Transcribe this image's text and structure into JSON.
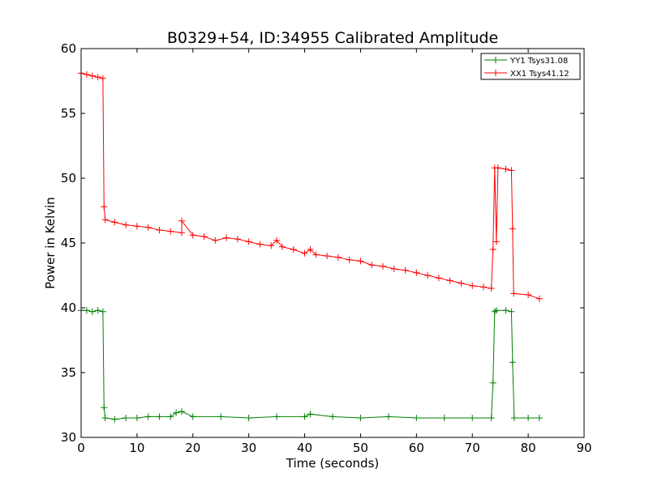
{
  "chart_data": {
    "type": "line",
    "title": "B0329+54, ID:34955 Calibrated Amplitude",
    "xlabel": "Time (seconds)",
    "ylabel": "Power in Kelvin",
    "xlim": [
      0,
      90
    ],
    "ylim": [
      30,
      60
    ],
    "xticks": [
      "0",
      "10",
      "20",
      "30",
      "40",
      "50",
      "60",
      "70",
      "80",
      "90"
    ],
    "yticks": [
      "30",
      "35",
      "40",
      "45",
      "50",
      "55",
      "60"
    ],
    "grid": false,
    "legend_position": "top-right",
    "series": [
      {
        "name": "YY1 Tsys31.08",
        "color": "#008000",
        "marker": "plus",
        "x": [
          0,
          1,
          2,
          3,
          3.9,
          4.1,
          4.3,
          6,
          8,
          10,
          12,
          14,
          16,
          17,
          18,
          20,
          25,
          30,
          35,
          40,
          41,
          45,
          50,
          55,
          60,
          65,
          70,
          73.4,
          73.7,
          74,
          74.3,
          76,
          77,
          77.2,
          77.5,
          80,
          82
        ],
        "y": [
          39.8,
          39.8,
          39.7,
          39.8,
          39.7,
          32.3,
          31.5,
          31.4,
          31.5,
          31.5,
          31.6,
          31.6,
          31.6,
          31.9,
          32.0,
          31.6,
          31.6,
          31.5,
          31.6,
          31.6,
          31.8,
          31.6,
          31.5,
          31.6,
          31.5,
          31.5,
          31.5,
          31.5,
          34.2,
          39.7,
          39.8,
          39.8,
          39.7,
          35.8,
          31.5,
          31.5,
          31.5
        ]
      },
      {
        "name": "XX1 Tsys41.12",
        "color": "#ff0000",
        "marker": "plus",
        "x": [
          0,
          1,
          2,
          3,
          3.9,
          4.1,
          4.3,
          6,
          8,
          10,
          12,
          14,
          16,
          18,
          18,
          20,
          22,
          24,
          26,
          28,
          30,
          32,
          34,
          35,
          36,
          38,
          40,
          41,
          42,
          44,
          46,
          48,
          50,
          52,
          54,
          56,
          58,
          60,
          62,
          64,
          66,
          68,
          70,
          72,
          73.4,
          73.7,
          74,
          74.3,
          74.6,
          76,
          77,
          77.2,
          77.4,
          80,
          82
        ],
        "y": [
          58.1,
          58.0,
          57.9,
          57.8,
          57.7,
          47.8,
          46.8,
          46.6,
          46.4,
          46.3,
          46.2,
          46.0,
          45.9,
          45.8,
          46.7,
          45.6,
          45.5,
          45.2,
          45.4,
          45.3,
          45.1,
          44.9,
          44.8,
          45.2,
          44.7,
          44.5,
          44.2,
          44.5,
          44.1,
          44.0,
          43.9,
          43.7,
          43.6,
          43.3,
          43.2,
          43.0,
          42.9,
          42.7,
          42.5,
          42.3,
          42.1,
          41.9,
          41.7,
          41.6,
          41.5,
          44.5,
          50.8,
          45.1,
          50.8,
          50.7,
          50.6,
          46.1,
          41.1,
          41.0,
          40.7
        ]
      }
    ]
  }
}
